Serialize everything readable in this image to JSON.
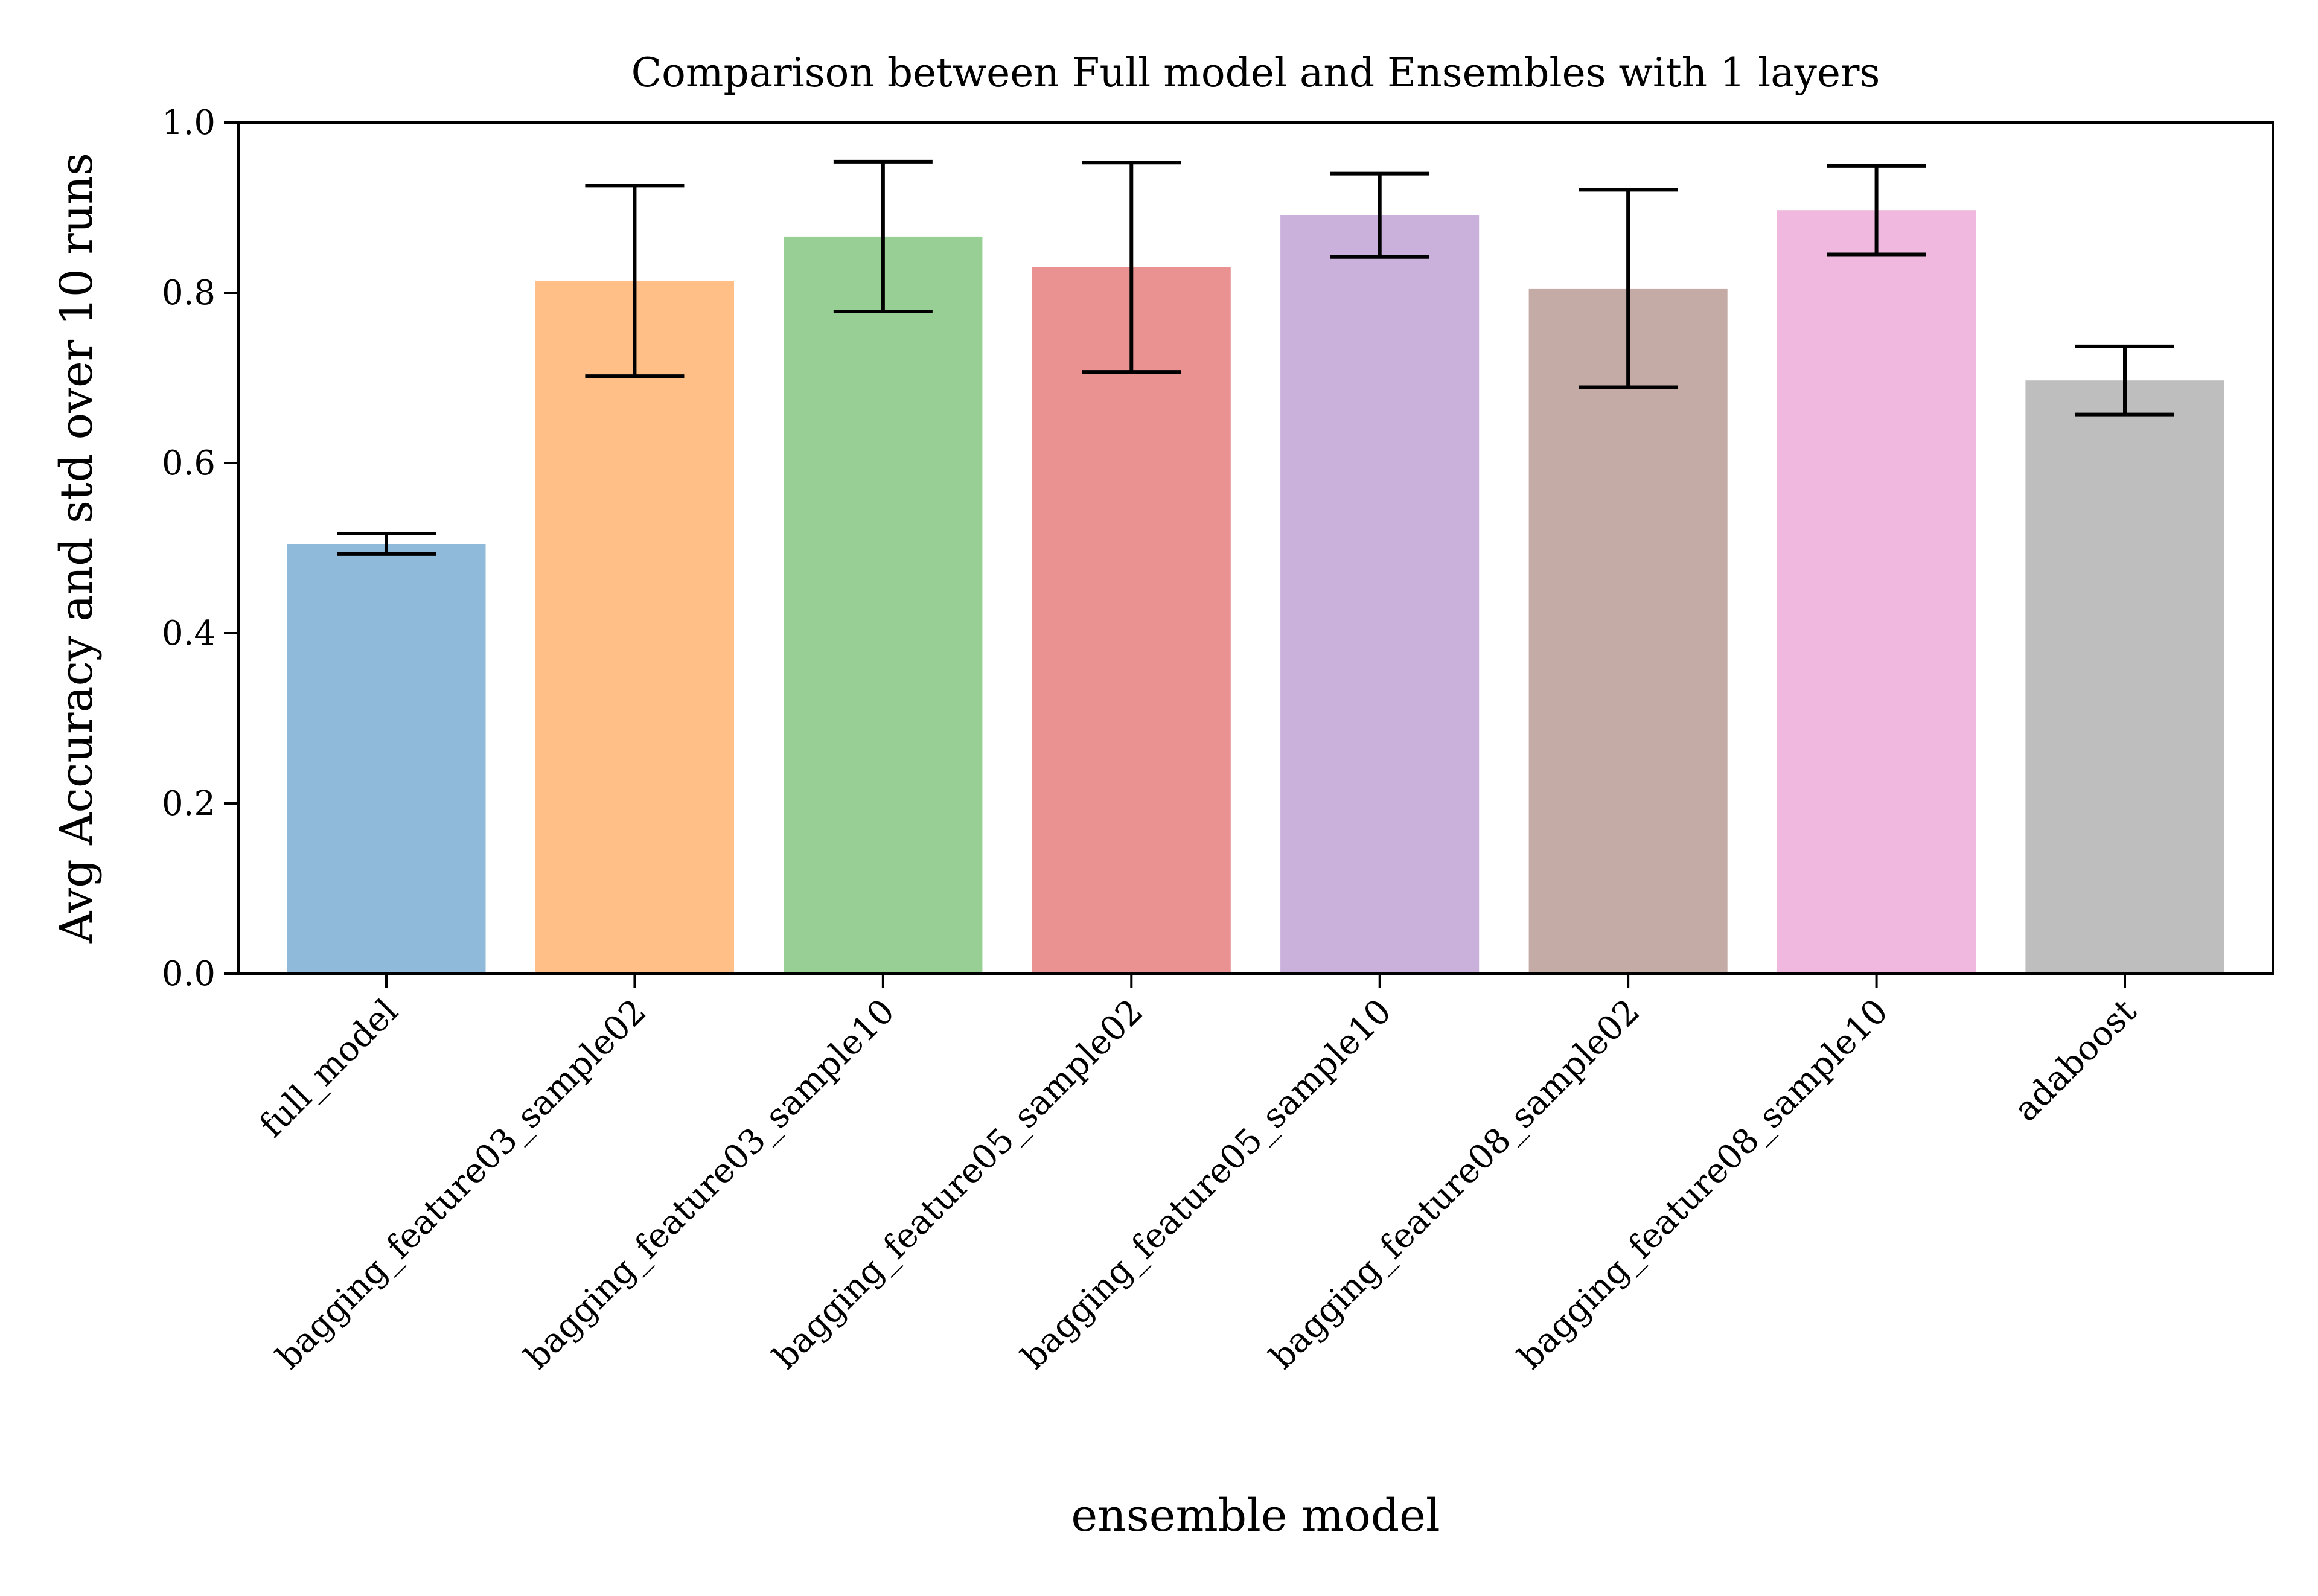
{
  "chart_data": {
    "type": "bar",
    "title": "Comparison between Full model and Ensembles with 1 layers",
    "xlabel": "ensemble model",
    "ylabel": "Avg Accuracy and std over 10 runs",
    "ylim": [
      0,
      1.0
    ],
    "yticks": [
      {
        "value": 0.0,
        "label": "0.0"
      },
      {
        "value": 0.2,
        "label": "0.2"
      },
      {
        "value": 0.4,
        "label": "0.4"
      },
      {
        "value": 0.6,
        "label": "0.6"
      },
      {
        "value": 0.8,
        "label": "0.8"
      },
      {
        "value": 1.0,
        "label": "1.0"
      }
    ],
    "grid": false,
    "categories": [
      "full_model",
      "bagging_feature03_sample02",
      "bagging_feature03_sample10",
      "bagging_feature05_sample02",
      "bagging_feature05_sample10",
      "bagging_feature08_sample02",
      "bagging_feature08_sample10",
      "adaboost"
    ],
    "values": [
      0.505,
      0.814,
      0.866,
      0.83,
      0.891,
      0.805,
      0.897,
      0.697
    ],
    "errors": [
      0.012,
      0.112,
      0.088,
      0.123,
      0.049,
      0.116,
      0.052,
      0.04
    ],
    "colors": [
      "#8fbad9",
      "#ffbf87",
      "#97cf95",
      "#ea9292",
      "#c9b1dc",
      "#c5aba5",
      "#f0b8de",
      "#bebebe"
    ],
    "error_bar_color": "#000000"
  }
}
